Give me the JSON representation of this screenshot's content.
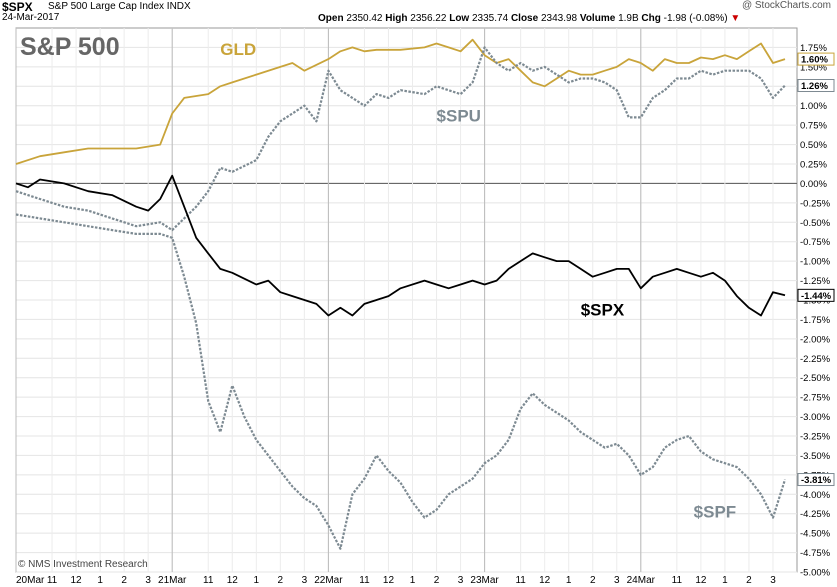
{
  "header": {
    "symbol": "$SPX",
    "description": "S&P 500 Large Cap Index",
    "exchange": "INDX",
    "date": "24-Mar-2017",
    "watermark": "@ StockCharts.com",
    "open_label": "Open",
    "open": "2350.42",
    "high_label": "High",
    "high": "2356.22",
    "low_label": "Low",
    "low": "2335.74",
    "close_label": "Close",
    "close": "2343.98",
    "volume_label": "Volume",
    "volume": "1.9B",
    "chg_label": "Chg",
    "chg": "-1.98 (-0.08%)"
  },
  "chart_data": {
    "type": "line",
    "title": "S&P 500",
    "footer": "© NMS Investment Research",
    "ylabel": "",
    "ylim": [
      -5.0,
      2.0
    ],
    "y_ticks": [
      "1.75%",
      "1.50%",
      "1.25%",
      "1.00%",
      "0.75%",
      "0.50%",
      "0.25%",
      "0.00%",
      "-0.25%",
      "-0.50%",
      "-0.75%",
      "-1.00%",
      "-1.25%",
      "-1.50%",
      "-1.75%",
      "-2.00%",
      "-2.25%",
      "-2.50%",
      "-2.75%",
      "-3.00%",
      "-3.25%",
      "-3.50%",
      "-3.75%",
      "-4.00%",
      "-4.25%",
      "-4.50%",
      "-4.75%",
      "-5.00%"
    ],
    "y_tick_values": [
      1.75,
      1.5,
      1.25,
      1.0,
      0.75,
      0.5,
      0.25,
      0.0,
      -0.25,
      -0.5,
      -0.75,
      -1.0,
      -1.25,
      -1.5,
      -1.75,
      -2.0,
      -2.25,
      -2.5,
      -2.75,
      -3.0,
      -3.25,
      -3.5,
      -3.75,
      -4.0,
      -4.25,
      -4.5,
      -4.75,
      -5.0
    ],
    "x_ticks": [
      "20Mar",
      "11",
      "12",
      "1",
      "2",
      "3",
      "21Mar",
      "11",
      "12",
      "1",
      "2",
      "3",
      "22Mar",
      "11",
      "12",
      "1",
      "2",
      "3",
      "23Mar",
      "11",
      "12",
      "1",
      "2",
      "3",
      "24Mar",
      "11",
      "12",
      "1",
      "2",
      "3"
    ],
    "x_tick_values": [
      0,
      1.5,
      2.5,
      3.5,
      4.5,
      5.5,
      6.5,
      8,
      9,
      10,
      11,
      12,
      13,
      14.5,
      15.5,
      16.5,
      17.5,
      18.5,
      19.5,
      21,
      22,
      23,
      24,
      25,
      26,
      27.5,
      28.5,
      29.5,
      30.5,
      31.5
    ],
    "day_start_values": [
      0,
      6.5,
      13,
      19.5,
      26
    ],
    "x_range": [
      0,
      32.5
    ],
    "series": [
      {
        "name": "GLD",
        "color": "#c9a43a",
        "style": "solid",
        "last_label": "1.60%",
        "x": [
          0,
          1,
          2,
          3,
          4,
          5,
          6,
          6.5,
          7,
          8,
          8.5,
          9,
          10,
          11,
          11.5,
          12,
          13,
          13.5,
          14,
          14.5,
          15,
          16,
          17,
          17.5,
          18,
          18.5,
          19,
          19.5,
          20,
          20.5,
          21,
          21.5,
          22,
          22.5,
          23,
          23.5,
          24,
          24.5,
          25,
          25.5,
          26,
          26.5,
          27,
          27.5,
          28,
          28.5,
          29,
          29.5,
          30,
          30.5,
          31,
          31.5,
          32
        ],
        "y": [
          0.25,
          0.35,
          0.4,
          0.45,
          0.45,
          0.45,
          0.5,
          0.9,
          1.1,
          1.15,
          1.25,
          1.3,
          1.4,
          1.5,
          1.55,
          1.45,
          1.6,
          1.7,
          1.75,
          1.7,
          1.72,
          1.72,
          1.75,
          1.8,
          1.75,
          1.7,
          1.85,
          1.65,
          1.55,
          1.6,
          1.45,
          1.3,
          1.25,
          1.35,
          1.45,
          1.4,
          1.4,
          1.45,
          1.5,
          1.6,
          1.55,
          1.45,
          1.6,
          1.55,
          1.55,
          1.62,
          1.6,
          1.65,
          1.6,
          1.7,
          1.8,
          1.55,
          1.6
        ]
      },
      {
        "name": "$SPU",
        "color": "#7d8a92",
        "style": "dotted",
        "last_label": "1.26%",
        "x": [
          0,
          1,
          2,
          3,
          4,
          5,
          6,
          6.5,
          7,
          7.5,
          8,
          8.5,
          9,
          10,
          10.5,
          11,
          11.5,
          12,
          12.5,
          13,
          13.5,
          14,
          14.5,
          15,
          15.5,
          16,
          17,
          17.5,
          18,
          18.5,
          19,
          19.5,
          20,
          20.5,
          21,
          21.5,
          22,
          22.5,
          23,
          23.5,
          24,
          24.5,
          25,
          25.5,
          26,
          26.5,
          27,
          27.5,
          28,
          28.5,
          29,
          29.5,
          30,
          30.5,
          31,
          31.5,
          32
        ],
        "y": [
          -0.1,
          -0.2,
          -0.3,
          -0.35,
          -0.45,
          -0.55,
          -0.5,
          -0.6,
          -0.45,
          -0.3,
          -0.1,
          0.2,
          0.15,
          0.3,
          0.6,
          0.8,
          0.9,
          1.0,
          0.8,
          1.45,
          1.2,
          1.1,
          1.0,
          1.15,
          1.1,
          1.2,
          1.15,
          1.25,
          1.2,
          1.15,
          1.3,
          1.75,
          1.55,
          1.45,
          1.55,
          1.45,
          1.5,
          1.4,
          1.3,
          1.35,
          1.35,
          1.3,
          1.2,
          0.85,
          0.85,
          1.1,
          1.2,
          1.35,
          1.35,
          1.45,
          1.4,
          1.45,
          1.45,
          1.45,
          1.35,
          1.1,
          1.26
        ]
      },
      {
        "name": "$SPX",
        "color": "#000000",
        "style": "solid",
        "last_label": "-1.44%",
        "x": [
          0,
          0.5,
          1,
          2,
          3,
          4,
          5,
          5.5,
          6,
          6.5,
          7,
          7.5,
          8,
          8.5,
          9,
          10,
          10.5,
          11,
          11.5,
          12,
          12.5,
          13,
          13.5,
          14,
          14.5,
          15,
          15.5,
          16,
          17,
          17.5,
          18,
          18.5,
          19,
          19.5,
          20,
          20.5,
          21,
          21.5,
          22,
          22.5,
          23,
          23.5,
          24,
          24.5,
          25,
          25.5,
          26,
          26.5,
          27,
          27.5,
          28,
          28.5,
          29,
          29.5,
          30,
          30.5,
          31,
          31.5,
          32
        ],
        "y": [
          0.0,
          -0.05,
          0.05,
          0.0,
          -0.1,
          -0.15,
          -0.3,
          -0.35,
          -0.2,
          0.1,
          -0.3,
          -0.7,
          -0.9,
          -1.1,
          -1.15,
          -1.3,
          -1.25,
          -1.4,
          -1.45,
          -1.5,
          -1.55,
          -1.7,
          -1.6,
          -1.7,
          -1.55,
          -1.5,
          -1.45,
          -1.35,
          -1.25,
          -1.3,
          -1.35,
          -1.3,
          -1.25,
          -1.3,
          -1.25,
          -1.1,
          -1.0,
          -0.9,
          -0.95,
          -1.0,
          -1.0,
          -1.1,
          -1.2,
          -1.15,
          -1.1,
          -1.1,
          -1.35,
          -1.2,
          -1.15,
          -1.1,
          -1.15,
          -1.2,
          -1.15,
          -1.25,
          -1.45,
          -1.6,
          -1.7,
          -1.4,
          -1.44
        ]
      },
      {
        "name": "$SPF",
        "color": "#7d8a92",
        "style": "dotted",
        "last_label": "-3.81%",
        "x": [
          0,
          1,
          2,
          3,
          4,
          5,
          6,
          6.5,
          7,
          7.5,
          8,
          8.5,
          9,
          9.5,
          10,
          10.5,
          11,
          11.5,
          12,
          12.5,
          13,
          13.5,
          14,
          14.5,
          15,
          15.5,
          16,
          16.5,
          17,
          17.5,
          18,
          18.5,
          19,
          19.5,
          20,
          20.5,
          21,
          21.5,
          22,
          22.5,
          23,
          23.5,
          24,
          24.5,
          25,
          25.5,
          26,
          26.5,
          27,
          27.5,
          28,
          28.5,
          29,
          29.5,
          30,
          30.5,
          31,
          31.5,
          32
        ],
        "y": [
          -0.4,
          -0.45,
          -0.5,
          -0.55,
          -0.6,
          -0.65,
          -0.65,
          -0.7,
          -1.2,
          -1.8,
          -2.8,
          -3.2,
          -2.6,
          -3.0,
          -3.3,
          -3.5,
          -3.7,
          -3.9,
          -4.05,
          -4.15,
          -4.4,
          -4.7,
          -4.0,
          -3.8,
          -3.5,
          -3.7,
          -3.85,
          -4.1,
          -4.3,
          -4.2,
          -4.0,
          -3.9,
          -3.8,
          -3.6,
          -3.5,
          -3.3,
          -2.9,
          -2.7,
          -2.85,
          -2.95,
          -3.05,
          -3.2,
          -3.3,
          -3.4,
          -3.35,
          -3.5,
          -3.75,
          -3.65,
          -3.4,
          -3.3,
          -3.25,
          -3.45,
          -3.55,
          -3.6,
          -3.65,
          -3.8,
          -4.0,
          -4.3,
          -3.81
        ]
      }
    ],
    "annotations": [
      {
        "text": "GLD",
        "x": 8.5,
        "y": 1.65,
        "color": "#c9a43a"
      },
      {
        "text": "$SPU",
        "x": 17.5,
        "y": 0.8,
        "color": "#7d8a92"
      },
      {
        "text": "$SPX",
        "x": 23.5,
        "y": -1.7,
        "color": "#000000"
      },
      {
        "text": "$SPF",
        "x": 28.2,
        "y": -4.3,
        "color": "#7d8a92"
      }
    ],
    "grid": true,
    "legend": "none"
  }
}
